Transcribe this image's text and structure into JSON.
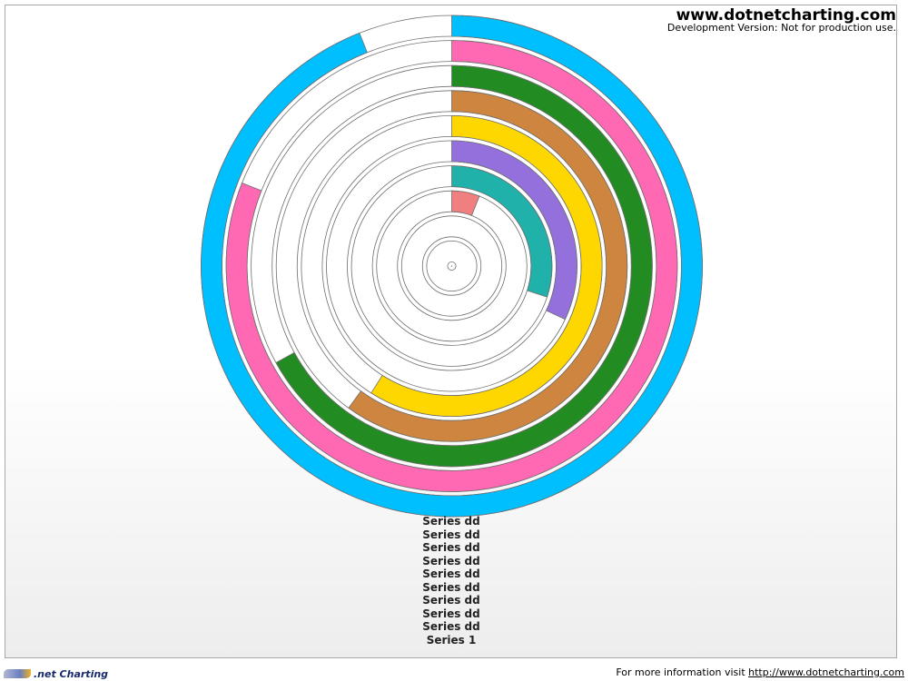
{
  "watermark": {
    "title": "www.dotnetcharting.com",
    "subtitle": "Development Version: Not for production use."
  },
  "footer": {
    "logo_text": ".net Charting",
    "info_text": "For more information visit",
    "link_text": "http://www.dotnetcharting.com"
  },
  "chart_data": {
    "type": "radial-bar",
    "max_value": 100,
    "start_angle": "top (12 o'clock), clockwise",
    "rings": [
      {
        "ring": 1,
        "value": 0,
        "color": ""
      },
      {
        "ring": 2,
        "value": 0,
        "color": ""
      },
      {
        "ring": 3,
        "value": 6,
        "color": "#f08080"
      },
      {
        "ring": 4,
        "value": 30,
        "color": "#20b2aa"
      },
      {
        "ring": 5,
        "value": 32,
        "color": "#9370db"
      },
      {
        "ring": 6,
        "value": 59,
        "color": "#ffd700"
      },
      {
        "ring": 7,
        "value": 60,
        "color": "#cd853f"
      },
      {
        "ring": 8,
        "value": 67,
        "color": "#228b22"
      },
      {
        "ring": 9,
        "value": 81,
        "color": "#ff69b4"
      },
      {
        "ring": 10,
        "value": 94,
        "color": "#00bfff"
      }
    ],
    "legend": [
      "Series dd",
      "Series dd",
      "Series dd",
      "Series dd",
      "Series dd",
      "Series dd",
      "Series dd",
      "Series dd",
      "Series dd",
      "Series 1"
    ]
  }
}
